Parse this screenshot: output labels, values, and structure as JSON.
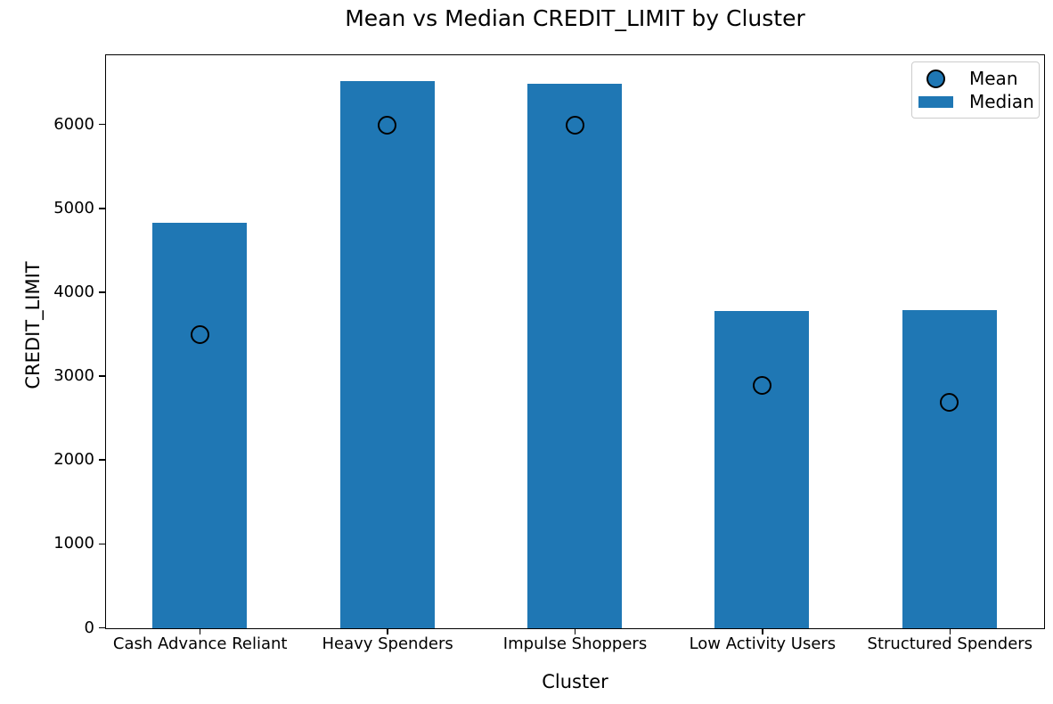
{
  "chart_data": {
    "type": "bar",
    "title": "Mean vs Median CREDIT_LIMIT by Cluster",
    "xlabel": "Cluster",
    "ylabel": "CREDIT_LIMIT",
    "categories": [
      "Cash Advance Reliant",
      "Heavy Spenders",
      "Impulse Shoppers",
      "Low Activity Users",
      "Structured Spenders"
    ],
    "series": [
      {
        "name": "Mean",
        "type": "scatter",
        "marker": "circle",
        "values": [
          3500,
          6000,
          6000,
          2890,
          2690
        ]
      },
      {
        "name": "Median",
        "type": "bar",
        "values": [
          4835,
          6520,
          6495,
          3780,
          3790
        ]
      }
    ],
    "ylim": [
      0,
      6820
    ],
    "yticks": [
      0,
      1000,
      2000,
      3000,
      4000,
      5000,
      6000
    ],
    "grid": false,
    "legend_position": "upper right",
    "colors": {
      "bar": "#1f77b4",
      "marker_face": "#1f77b4",
      "marker_edge": "#000000",
      "axis": "#000000"
    }
  }
}
